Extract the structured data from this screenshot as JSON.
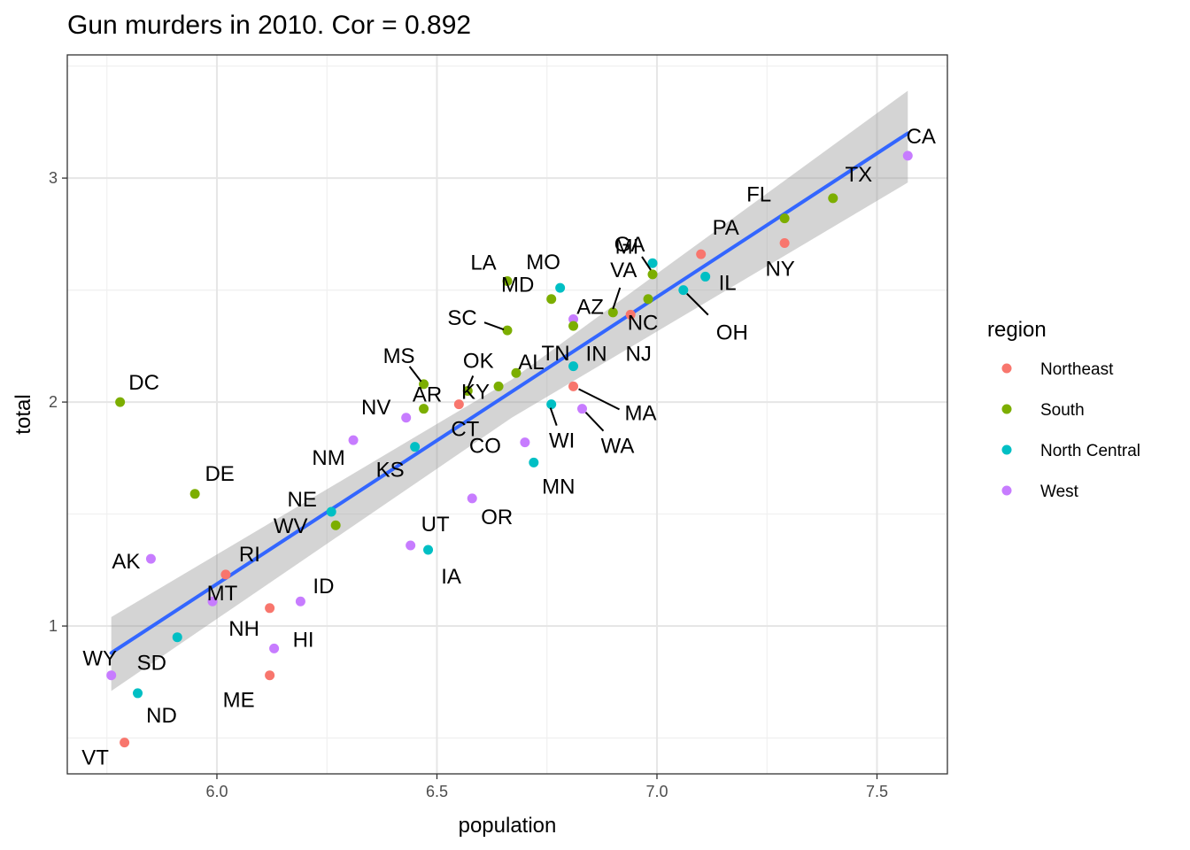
{
  "chart_data": {
    "type": "scatter",
    "title": "Gun murders in 2010. Cor = 0.892",
    "xlabel": "population",
    "ylabel": "total",
    "xlim": [
      5.66,
      7.66
    ],
    "ylim": [
      0.34,
      3.55
    ],
    "xticks": [
      6.0,
      6.5,
      7.0,
      7.5
    ],
    "xtick_labels": [
      "6.0",
      "6.5",
      "7.0",
      "7.5"
    ],
    "yticks": [
      1,
      2,
      3
    ],
    "ytick_labels": [
      "1",
      "2",
      "3"
    ],
    "grid": true,
    "legend": {
      "title": "region",
      "position": "right",
      "entries": [
        {
          "name": "Northeast",
          "color": "#F8766D"
        },
        {
          "name": "South",
          "color": "#7CAE00"
        },
        {
          "name": "North Central",
          "color": "#00BFC4"
        },
        {
          "name": "West",
          "color": "#C77CFF"
        }
      ]
    },
    "fit": {
      "type": "linear",
      "line_color": "#3366FF",
      "band_color": "#999999",
      "x_range": [
        5.76,
        7.57
      ],
      "line": [
        [
          5.76,
          0.88
        ],
        [
          7.57,
          3.2
        ]
      ],
      "band_upper": [
        [
          5.76,
          1.04
        ],
        [
          6.67,
          2.1
        ],
        [
          7.57,
          3.39
        ]
      ],
      "band_lower": [
        [
          5.76,
          0.71
        ],
        [
          6.67,
          1.93
        ],
        [
          7.57,
          2.98
        ]
      ]
    },
    "points": [
      {
        "state": "AL",
        "region": "South",
        "x": 6.68,
        "y": 2.13
      },
      {
        "state": "AK",
        "region": "West",
        "x": 5.85,
        "y": 1.3
      },
      {
        "state": "AZ",
        "region": "West",
        "x": 6.81,
        "y": 2.37
      },
      {
        "state": "AR",
        "region": "South",
        "x": 6.47,
        "y": 1.97
      },
      {
        "state": "CA",
        "region": "West",
        "x": 7.57,
        "y": 3.1
      },
      {
        "state": "CO",
        "region": "West",
        "x": 6.7,
        "y": 1.82
      },
      {
        "state": "CT",
        "region": "Northeast",
        "x": 6.55,
        "y": 1.99
      },
      {
        "state": "DE",
        "region": "South",
        "x": 5.95,
        "y": 1.59
      },
      {
        "state": "DC",
        "region": "South",
        "x": 5.78,
        "y": 2.0
      },
      {
        "state": "FL",
        "region": "South",
        "x": 7.29,
        "y": 2.82
      },
      {
        "state": "GA",
        "region": "South",
        "x": 6.99,
        "y": 2.57
      },
      {
        "state": "HI",
        "region": "West",
        "x": 6.13,
        "y": 0.9
      },
      {
        "state": "ID",
        "region": "West",
        "x": 6.19,
        "y": 1.11
      },
      {
        "state": "IL",
        "region": "North Central",
        "x": 7.11,
        "y": 2.56
      },
      {
        "state": "IN",
        "region": "North Central",
        "x": 6.81,
        "y": 2.16
      },
      {
        "state": "IA",
        "region": "North Central",
        "x": 6.48,
        "y": 1.34
      },
      {
        "state": "KS",
        "region": "North Central",
        "x": 6.45,
        "y": 1.8
      },
      {
        "state": "KY",
        "region": "South",
        "x": 6.64,
        "y": 2.07
      },
      {
        "state": "LA",
        "region": "South",
        "x": 6.66,
        "y": 2.54
      },
      {
        "state": "ME",
        "region": "Northeast",
        "x": 6.12,
        "y": 0.78
      },
      {
        "state": "MD",
        "region": "South",
        "x": 6.76,
        "y": 2.46
      },
      {
        "state": "MA",
        "region": "Northeast",
        "x": 6.81,
        "y": 2.07
      },
      {
        "state": "MI",
        "region": "North Central",
        "x": 6.99,
        "y": 2.62
      },
      {
        "state": "MN",
        "region": "North Central",
        "x": 6.72,
        "y": 1.73
      },
      {
        "state": "MS",
        "region": "South",
        "x": 6.47,
        "y": 2.08
      },
      {
        "state": "MO",
        "region": "North Central",
        "x": 6.78,
        "y": 2.51
      },
      {
        "state": "MT",
        "region": "West",
        "x": 5.99,
        "y": 1.11
      },
      {
        "state": "NE",
        "region": "North Central",
        "x": 6.26,
        "y": 1.51
      },
      {
        "state": "NV",
        "region": "West",
        "x": 6.43,
        "y": 1.93
      },
      {
        "state": "NH",
        "region": "Northeast",
        "x": 6.12,
        "y": 1.08
      },
      {
        "state": "NJ",
        "region": "Northeast",
        "x": 6.94,
        "y": 2.39
      },
      {
        "state": "NM",
        "region": "West",
        "x": 6.31,
        "y": 1.83
      },
      {
        "state": "NY",
        "region": "Northeast",
        "x": 7.29,
        "y": 2.71
      },
      {
        "state": "NC",
        "region": "South",
        "x": 6.98,
        "y": 2.46
      },
      {
        "state": "ND",
        "region": "North Central",
        "x": 5.82,
        "y": 0.7
      },
      {
        "state": "OH",
        "region": "North Central",
        "x": 7.06,
        "y": 2.5
      },
      {
        "state": "OK",
        "region": "South",
        "x": 6.57,
        "y": 2.05
      },
      {
        "state": "OR",
        "region": "West",
        "x": 6.58,
        "y": 1.57
      },
      {
        "state": "PA",
        "region": "Northeast",
        "x": 7.1,
        "y": 2.66
      },
      {
        "state": "RI",
        "region": "Northeast",
        "x": 6.02,
        "y": 1.23
      },
      {
        "state": "SC",
        "region": "South",
        "x": 6.66,
        "y": 2.32
      },
      {
        "state": "SD",
        "region": "North Central",
        "x": 5.91,
        "y": 0.95
      },
      {
        "state": "TN",
        "region": "South",
        "x": 6.81,
        "y": 2.34
      },
      {
        "state": "TX",
        "region": "South",
        "x": 7.4,
        "y": 2.91
      },
      {
        "state": "UT",
        "region": "West",
        "x": 6.44,
        "y": 1.36
      },
      {
        "state": "VT",
        "region": "Northeast",
        "x": 5.79,
        "y": 0.48
      },
      {
        "state": "VA",
        "region": "South",
        "x": 6.9,
        "y": 2.4
      },
      {
        "state": "WA",
        "region": "West",
        "x": 6.83,
        "y": 1.97
      },
      {
        "state": "WV",
        "region": "South",
        "x": 6.27,
        "y": 1.45
      },
      {
        "state": "WI",
        "region": "North Central",
        "x": 6.76,
        "y": 1.99
      },
      {
        "state": "WY",
        "region": "West",
        "x": 5.76,
        "y": 0.78
      }
    ]
  }
}
